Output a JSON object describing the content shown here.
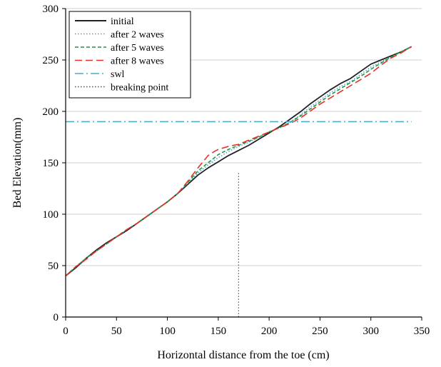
{
  "chart_data": {
    "type": "line",
    "xlabel": "Horizontal distance from the toe (cm)",
    "ylabel": "Bed Elevation(mm)",
    "xlim": [
      0,
      350
    ],
    "ylim": [
      0,
      300
    ],
    "xticks": [
      "0",
      "50",
      "100",
      "150",
      "200",
      "250",
      "300",
      "350"
    ],
    "yticks": [
      "0",
      "50",
      "100",
      "150",
      "200",
      "250",
      "300"
    ],
    "grid": "horizontal",
    "legend_position": "top-left",
    "series": [
      {
        "name": "initial",
        "color": "#222222",
        "style": "solid",
        "x": [
          0,
          10,
          20,
          30,
          40,
          50,
          60,
          70,
          80,
          90,
          100,
          110,
          120,
          130,
          140,
          150,
          160,
          170,
          180,
          190,
          200,
          210,
          220,
          230,
          240,
          250,
          260,
          270,
          280,
          290,
          300,
          310,
          320,
          330,
          340
        ],
        "y": [
          40,
          48,
          57,
          65,
          72,
          78,
          84,
          91,
          98,
          105,
          112,
          120,
          129,
          138,
          145,
          151,
          157,
          162,
          167,
          173,
          179,
          185,
          192,
          199,
          207,
          214,
          221,
          227,
          232,
          239,
          246,
          250,
          254,
          258,
          263
        ]
      },
      {
        "name": "after 2 waves",
        "color": "#5b9bd5",
        "style": "dotted",
        "x": [
          0,
          10,
          20,
          30,
          40,
          50,
          60,
          70,
          80,
          90,
          100,
          110,
          120,
          130,
          140,
          150,
          160,
          170,
          180,
          190,
          200,
          210,
          220,
          230,
          240,
          250,
          260,
          270,
          280,
          290,
          300,
          310,
          320,
          330,
          340
        ],
        "y": [
          40,
          49,
          57,
          64,
          71,
          78,
          85,
          91,
          98,
          105,
          112,
          120,
          130,
          140,
          148,
          155,
          161,
          166,
          170,
          175,
          180,
          184,
          189,
          196,
          204,
          211,
          218,
          224,
          229,
          236,
          243,
          248,
          253,
          258,
          263
        ]
      },
      {
        "name": "after 5 waves",
        "color": "#1a9c3e",
        "style": "dashed",
        "x": [
          0,
          10,
          20,
          30,
          40,
          50,
          60,
          70,
          80,
          90,
          100,
          110,
          120,
          130,
          140,
          150,
          160,
          170,
          180,
          190,
          200,
          210,
          220,
          230,
          240,
          250,
          260,
          270,
          280,
          290,
          300,
          310,
          320,
          330,
          340
        ],
        "y": [
          40,
          49,
          57,
          64,
          71,
          78,
          85,
          91,
          98,
          105,
          112,
          120,
          131,
          142,
          150,
          158,
          163,
          167,
          171,
          175,
          180,
          184,
          189,
          195,
          202,
          209,
          216,
          222,
          228,
          234,
          241,
          247,
          253,
          258,
          263
        ]
      },
      {
        "name": "after 8 waves",
        "color": "#e8302a",
        "style": "longdash",
        "x": [
          0,
          10,
          20,
          30,
          40,
          50,
          60,
          70,
          80,
          90,
          100,
          110,
          120,
          130,
          140,
          146,
          150,
          160,
          170,
          180,
          190,
          200,
          210,
          220,
          230,
          240,
          250,
          260,
          270,
          280,
          290,
          300,
          310,
          320,
          330,
          340
        ],
        "y": [
          40,
          49,
          56,
          64,
          71,
          78,
          85,
          91,
          98,
          105,
          112,
          120,
          132,
          145,
          157,
          161,
          163,
          166,
          168,
          172,
          176,
          180,
          184,
          188,
          193,
          200,
          207,
          213,
          219,
          225,
          231,
          237,
          245,
          252,
          257,
          263
        ]
      },
      {
        "name": "swl",
        "color": "#4bacc6",
        "style": "dashdot",
        "x": [
          0,
          340
        ],
        "y": [
          190,
          190
        ]
      },
      {
        "name": "breaking point",
        "color": "#555555",
        "style": "dotted",
        "x": [
          170,
          170
        ],
        "y": [
          0,
          140
        ]
      }
    ]
  }
}
